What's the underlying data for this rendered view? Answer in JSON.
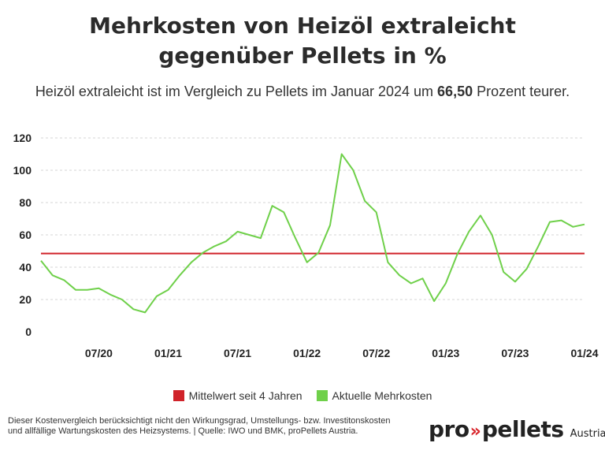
{
  "header": {
    "title_line1": "Mehrkosten von Heizöl extraleicht",
    "title_line2": "gegenüber Pellets in %",
    "subtitle_part1": "Heizöl extraleicht",
    "subtitle_part2": " ist im Vergleich zu Pellets im Januar 2024 um ",
    "subtitle_value": "66,50",
    "subtitle_part3": " Prozent teurer."
  },
  "legend": {
    "mean_label": "Mittelwert seit 4 Jahren",
    "current_label": "Aktuelle Mehrkosten"
  },
  "colors": {
    "mean_line": "#d0232a",
    "current_line": "#6fd04a",
    "grid": "#d6d6d6"
  },
  "footnote": "Dieser Kostenvergleich berücksichtigt nicht den Wirkungsgrad, Umstellungs- bzw. Investitonskosten und allfällige Wartungskosten des Heizsystems. | Quelle: IWO und BMK, proPellets Austria.",
  "logo": {
    "pro": "pro",
    "arrows": "»",
    "pellets": "pellets",
    "region": "Austria"
  },
  "chart_data": {
    "type": "line",
    "title": "Mehrkosten von Heizöl extraleicht gegenüber Pellets in %",
    "xlabel": "",
    "ylabel": "",
    "ylim": [
      0,
      120
    ],
    "yticks": [
      0,
      20,
      40,
      60,
      80,
      100,
      120
    ],
    "grid": "horizontal dashed",
    "legend_position": "bottom",
    "x_tick_labels": [
      "07/20",
      "01/21",
      "07/21",
      "01/22",
      "07/22",
      "01/23",
      "07/23",
      "01/24"
    ],
    "x": [
      "02/20",
      "03/20",
      "04/20",
      "05/20",
      "06/20",
      "07/20",
      "08/20",
      "09/20",
      "10/20",
      "11/20",
      "12/20",
      "01/21",
      "02/21",
      "03/21",
      "04/21",
      "05/21",
      "06/21",
      "07/21",
      "08/21",
      "09/21",
      "10/21",
      "11/21",
      "12/21",
      "01/22",
      "02/22",
      "03/22",
      "04/22",
      "05/22",
      "06/22",
      "07/22",
      "08/22",
      "09/22",
      "10/22",
      "11/22",
      "12/22",
      "01/23",
      "02/23",
      "03/23",
      "04/23",
      "05/23",
      "06/23",
      "07/23",
      "08/23",
      "09/23",
      "10/23",
      "11/23",
      "12/23",
      "01/24"
    ],
    "series": [
      {
        "name": "Aktuelle Mehrkosten",
        "values": [
          44,
          35,
          32,
          26,
          26,
          27,
          23,
          20,
          14,
          12,
          22,
          26,
          35,
          43,
          49,
          53,
          56,
          62,
          60,
          58,
          78,
          74,
          58,
          43,
          49,
          66,
          110,
          100,
          81,
          74,
          43,
          35,
          30,
          33,
          19,
          30,
          48,
          62,
          72,
          60,
          37,
          31,
          39,
          53,
          68,
          69,
          65,
          66.5
        ]
      },
      {
        "name": "Mittelwert seit 4 Jahren",
        "value": 48.5
      }
    ]
  }
}
